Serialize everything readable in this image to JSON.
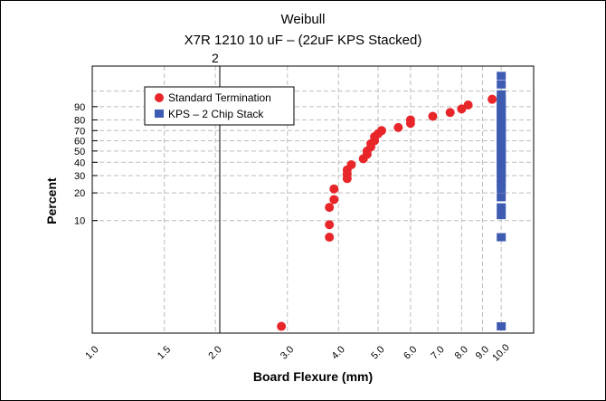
{
  "chart_data": {
    "type": "scatter",
    "title": "Weibull",
    "subtitle": "X7R 1210 10 uF – (22uF KPS Stacked)",
    "extra_label": "2",
    "xlabel": "Board Flexure (mm)",
    "ylabel": "Percent",
    "x_scale": "log",
    "xlim": [
      1.0,
      12.0
    ],
    "x_ticks": [
      "1.0",
      "1.5",
      "2.0",
      "3.0",
      "4.0",
      "5.0",
      "6.0",
      "7.0",
      "8.0",
      "9.0",
      "10.0"
    ],
    "y_ticks": [
      "10",
      "20",
      "30",
      "40",
      "50",
      "60",
      "70",
      "80",
      "90"
    ],
    "grid": true,
    "legend_position": "top-left",
    "series": [
      {
        "name": "Standard Termination",
        "color": "#e8262a",
        "marker": "circle",
        "x": [
          2.9,
          3.8,
          3.8,
          3.8,
          3.9,
          3.9,
          4.2,
          4.2,
          4.2,
          4.3,
          4.6,
          4.7,
          4.7,
          4.8,
          4.8,
          4.9,
          4.9,
          5.0,
          5.1,
          5.6,
          6.0,
          6.0,
          6.8,
          7.5,
          8.0,
          8.3,
          9.5
        ],
        "y": [
          0.6,
          6.5,
          9.0,
          14.0,
          17.0,
          22.0,
          28.0,
          31.0,
          34.0,
          38.0,
          43.0,
          47.0,
          50.0,
          54.0,
          57.0,
          60.0,
          64.0,
          67.0,
          70.0,
          73.0,
          77.0,
          80.0,
          83.0,
          86.0,
          88.5,
          91.0,
          94.0
        ]
      },
      {
        "name": "KPS – 2 Chip Stack",
        "color": "#3e5bb2",
        "marker": "square",
        "x": [
          10.0,
          10.0,
          10.0,
          10.0,
          10.0,
          10.0,
          10.0,
          10.0,
          10.0,
          10.0,
          10.0,
          10.0,
          10.0,
          10.0,
          10.0,
          10.0,
          10.0,
          10.0,
          10.0,
          10.0,
          10.0,
          10.0,
          10.0,
          10.0,
          10.0,
          10.0,
          10.0,
          10.0,
          10.0,
          10.0,
          10.0,
          10.0,
          10.0,
          10.0
        ],
        "y": [
          0.6,
          6.5,
          11.5,
          14.0,
          18.0,
          22.0,
          25.0,
          28.0,
          31.0,
          34.0,
          37.0,
          40.0,
          43.0,
          46.0,
          49.0,
          52.0,
          55.0,
          58.0,
          61.0,
          64.0,
          67.0,
          70.0,
          73.0,
          76.0,
          79.0,
          82.0,
          85.0,
          88.0,
          90.0,
          92.0,
          94.0,
          96.0,
          98.5,
          99.5
        ]
      }
    ]
  }
}
